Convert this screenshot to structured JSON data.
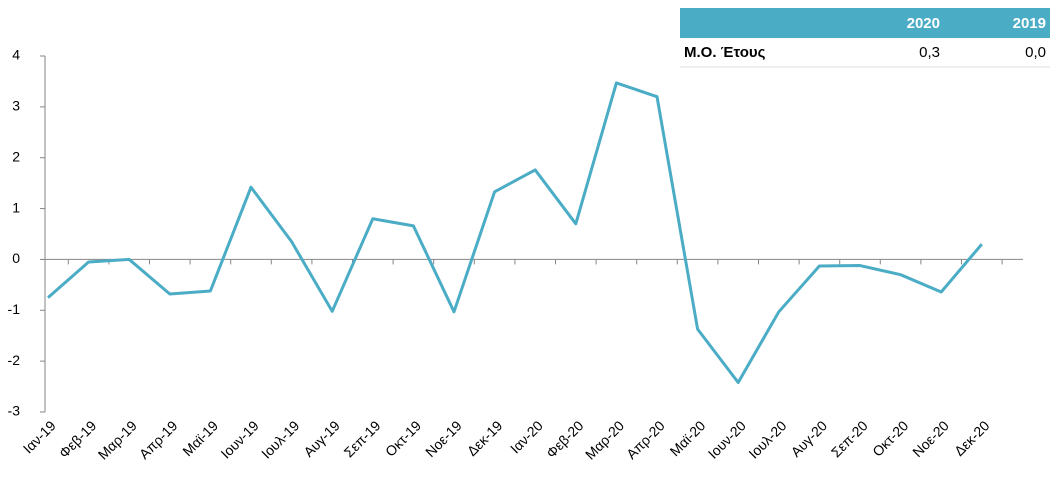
{
  "chart_data": {
    "type": "line",
    "categories": [
      "Ιαν-19",
      "Φεβ-19",
      "Μαρ-19",
      "Απρ-19",
      "Μαϊ-19",
      "Ιουν-19",
      "Ιουλ-19",
      "Αυγ-19",
      "Σεπ-19",
      "Οκτ-19",
      "Νοε-19",
      "Δεκ-19",
      "Ιαν-20",
      "Φεβ-20",
      "Μαρ-20",
      "Απρ-20",
      "Μαϊ-20",
      "Ιουν-20",
      "Ιουλ-20",
      "Αυγ-20",
      "Σεπ-20",
      "Οκτ-20",
      "Νοε-20",
      "Δεκ-20"
    ],
    "values": [
      -0.75,
      -0.05,
      0.0,
      -0.68,
      -0.62,
      1.42,
      0.35,
      -1.02,
      0.8,
      0.66,
      -1.03,
      1.33,
      1.76,
      0.7,
      3.47,
      3.2,
      -1.37,
      -2.42,
      -1.03,
      -0.13,
      -0.12,
      -0.3,
      -0.64,
      0.3
    ],
    "color": "#4bacc6",
    "ylim": [
      -3,
      4
    ],
    "yticks": [
      -3,
      -2,
      -1,
      0,
      1,
      2,
      3,
      4
    ]
  },
  "table": {
    "header": [
      "2020",
      "2019"
    ],
    "rows": [
      [
        "Μ.Ο. Έτους",
        "0,3",
        "0,0"
      ]
    ]
  }
}
